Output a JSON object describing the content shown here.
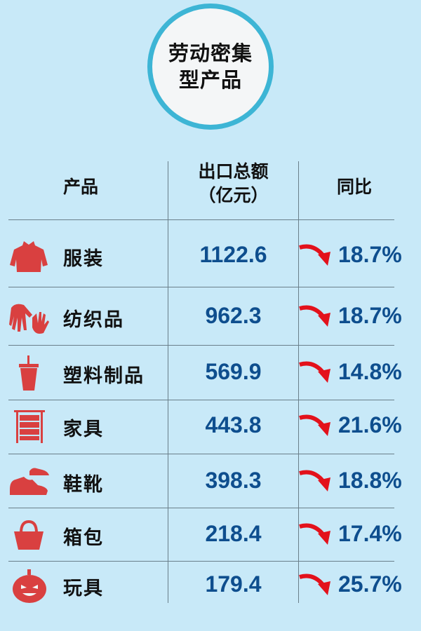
{
  "title": {
    "line1": "劳动密集",
    "line2": "型产品"
  },
  "headers": {
    "product": "产品",
    "export_line1": "出口总额",
    "export_line2": "（亿元）",
    "yoy": "同比"
  },
  "colors": {
    "background": "#c8e9f8",
    "circle_border": "#3db5d5",
    "icon": "#d94040",
    "value": "#0e4e8e",
    "arrow": "#e3111b"
  },
  "rows": [
    {
      "icon": "sweater-icon",
      "name": "服装",
      "value": "1122.6",
      "trend": "down",
      "change": "18.7%"
    },
    {
      "icon": "hands-icon",
      "name": "纺织品",
      "value": "962.3",
      "trend": "down",
      "change": "18.7%"
    },
    {
      "icon": "cup-icon",
      "name": "塑料制品",
      "value": "569.9",
      "trend": "down",
      "change": "14.8%"
    },
    {
      "icon": "cabinet-icon",
      "name": "家具",
      "value": "443.8",
      "trend": "down",
      "change": "21.6%"
    },
    {
      "icon": "shoes-icon",
      "name": "鞋靴",
      "value": "398.3",
      "trend": "down",
      "change": "18.8%"
    },
    {
      "icon": "bag-icon",
      "name": "箱包",
      "value": "218.4",
      "trend": "down",
      "change": "17.4%"
    },
    {
      "icon": "pumpkin-icon",
      "name": "玩具",
      "value": "179.4",
      "trend": "down",
      "change": "25.7%"
    }
  ]
}
